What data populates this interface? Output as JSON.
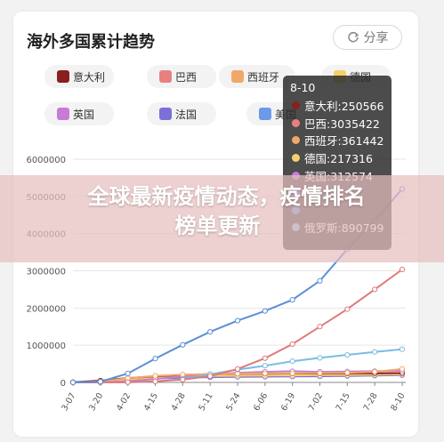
{
  "card": {
    "title": "海外多国累计趋势",
    "share_label": "分享"
  },
  "legend": [
    {
      "name": "意大利",
      "color": "#8b1e1e"
    },
    {
      "name": "巴西",
      "color": "#e88080"
    },
    {
      "name": "西班牙",
      "color": "#f0a868"
    },
    {
      "name": "德国",
      "color": "#f5cf6a"
    },
    {
      "name": "英国",
      "color": "#c77bd6"
    },
    {
      "name": "法国",
      "color": "#7d6fd8"
    },
    {
      "name": "美国",
      "color": "#6b9ae8"
    }
  ],
  "tooltip": {
    "date": "8-10",
    "rows": [
      {
        "text": "意大利:250566",
        "color": "#8b1e1e"
      },
      {
        "text": "巴西:3035422",
        "color": "#e88080"
      },
      {
        "text": "西班牙:361442",
        "color": "#f0a868"
      },
      {
        "text": "德国:217316",
        "color": "#f5cf6a"
      },
      {
        "text": "英国:312574",
        "color": "#c77bd6"
      },
      {
        "text": "",
        "color": "#7d6fd8"
      },
      {
        "text": "",
        "color": "#6b9ae8"
      },
      {
        "text": "俄罗斯:890799",
        "color": "#88c8e8"
      }
    ]
  },
  "banner": {
    "line1": "全球最新疫情动态，疫情排名",
    "line2": "榜单更新"
  },
  "chart_data": {
    "type": "line",
    "x": [
      "3-07",
      "3-20",
      "4-02",
      "4-15",
      "4-28",
      "5-11",
      "5-24",
      "6-06",
      "6-19",
      "7-02",
      "7-15",
      "7-28",
      "8-10"
    ],
    "ylim": [
      0,
      6000000
    ],
    "yticks": [
      "0",
      "1000000",
      "2000000",
      "3000000",
      "4000000",
      "5000000",
      "6000000"
    ],
    "grid": true,
    "series": [
      {
        "name": "美国",
        "color": "#5b8fd6",
        "values": [
          600,
          20000,
          240000,
          640000,
          1010000,
          1360000,
          1660000,
          1920000,
          2220000,
          2730000,
          3580000,
          4350000,
          5200000
        ]
      },
      {
        "name": "巴西",
        "color": "#e07a7a",
        "values": [
          10,
          600,
          8000,
          28000,
          73000,
          170000,
          360000,
          650000,
          1030000,
          1500000,
          1970000,
          2500000,
          3035422
        ]
      },
      {
        "name": "俄罗斯",
        "color": "#79bde0",
        "values": [
          10,
          250,
          3500,
          25000,
          94000,
          220000,
          345000,
          450000,
          570000,
          660000,
          740000,
          820000,
          890799
        ]
      },
      {
        "name": "西班牙",
        "color": "#f0a868",
        "values": [
          500,
          24000,
          112000,
          177000,
          210000,
          225000,
          235000,
          241000,
          245000,
          250000,
          260000,
          285000,
          361442
        ]
      },
      {
        "name": "英国",
        "color": "#c77bd6",
        "values": [
          200,
          4000,
          34000,
          94000,
          160000,
          220000,
          260000,
          285000,
          300000,
          284000,
          292000,
          301000,
          312574
        ]
      },
      {
        "name": "意大利",
        "color": "#8b1e1e",
        "values": [
          5800,
          47000,
          116000,
          165000,
          200000,
          220000,
          230000,
          234000,
          238000,
          240000,
          244000,
          247000,
          250566
        ]
      },
      {
        "name": "德国",
        "color": "#f5cf6a",
        "values": [
          800,
          19000,
          79000,
          130000,
          160000,
          172000,
          180000,
          185000,
          190000,
          196000,
          201000,
          207000,
          217316
        ]
      },
      {
        "name": "法国",
        "color": "#7d6fd8",
        "values": [
          1000,
          12000,
          59000,
          106000,
          128000,
          140000,
          150000,
          155000,
          160000,
          165000,
          175000,
          185000,
          197000
        ]
      }
    ]
  }
}
